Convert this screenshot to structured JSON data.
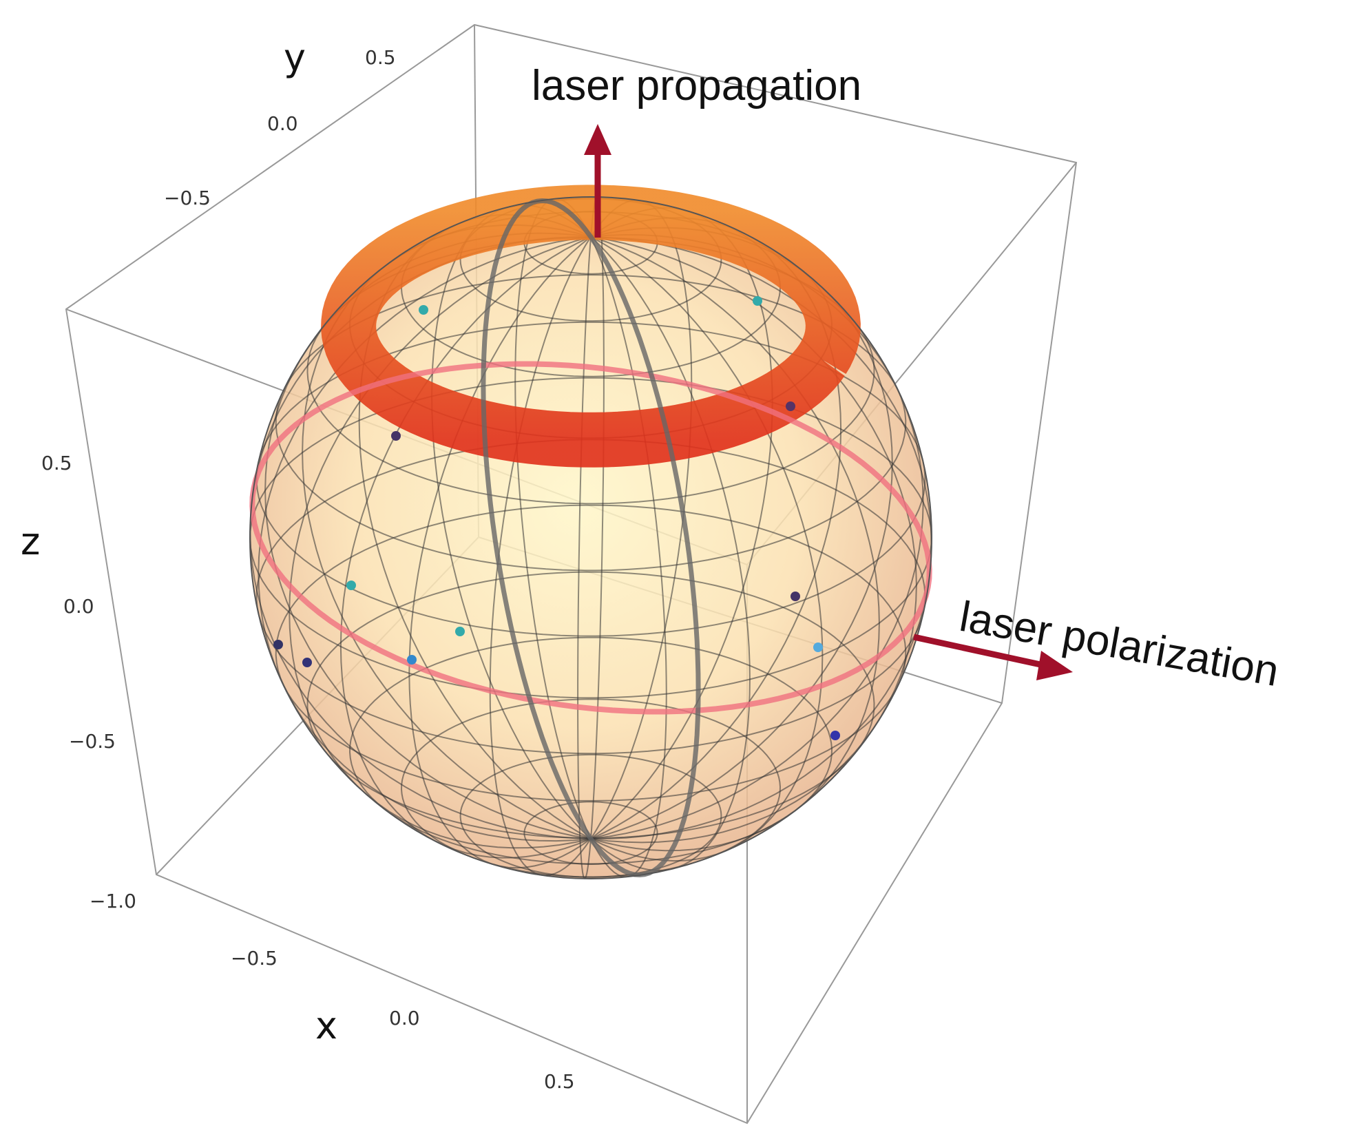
{
  "annotations": {
    "propagation": "laser propagation",
    "polarization": "laser polarization"
  },
  "axes": {
    "x": {
      "label": "x",
      "ticks": [
        "−0.5",
        "0.0",
        "0.5"
      ]
    },
    "y": {
      "label": "y",
      "ticks": [
        "−0.5",
        "0.0",
        "0.5"
      ]
    },
    "z": {
      "label": "z",
      "ticks": [
        "−1.0",
        "−0.5",
        "0.0",
        "0.5"
      ]
    }
  }
}
